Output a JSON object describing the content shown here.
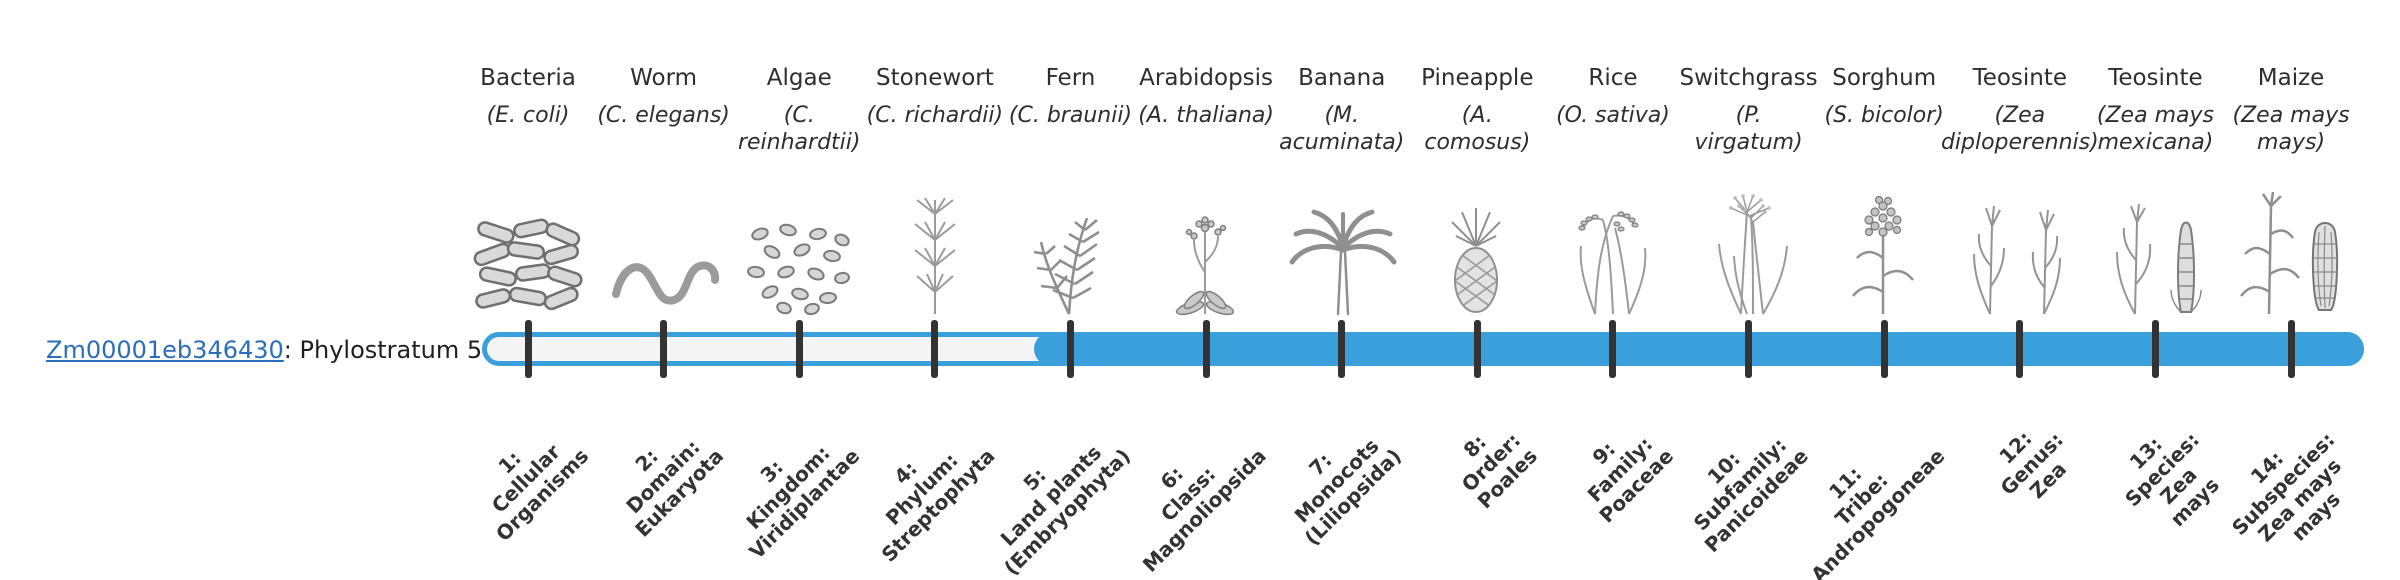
{
  "gene": {
    "id": "Zm00001eb346430",
    "suffix": ": Phylostratum 5",
    "phylostratum": 5
  },
  "colors": {
    "accent": "#3AA0DC",
    "bar_empty": "#F4F4F4",
    "tick": "#333333",
    "link": "#2A6EBB",
    "text": "#2E2E2E"
  },
  "bar": {
    "total_strata": 14,
    "filled_from_stratum": 5,
    "filled_to_stratum": 14
  },
  "organisms": [
    {
      "common": "Bacteria",
      "sci": "(E. coli)",
      "icon": "bacteria-icon"
    },
    {
      "common": "Worm",
      "sci": "(C. elegans)",
      "icon": "worm-icon"
    },
    {
      "common": "Algae",
      "sci": "(C.\nreinhardtii)",
      "icon": "algae-icon"
    },
    {
      "common": "Stonewort",
      "sci": "(C. richardii)",
      "icon": "stonewort-icon"
    },
    {
      "common": "Fern",
      "sci": "(C. braunii)",
      "icon": "fern-icon"
    },
    {
      "common": "Arabidopsis",
      "sci": "(A. thaliana)",
      "icon": "arabidopsis-icon"
    },
    {
      "common": "Banana",
      "sci": "(M.\nacuminata)",
      "icon": "banana-icon"
    },
    {
      "common": "Pineapple",
      "sci": "(A.\ncomosus)",
      "icon": "pineapple-icon"
    },
    {
      "common": "Rice",
      "sci": "(O. sativa)",
      "icon": "rice-icon"
    },
    {
      "common": "Switchgrass",
      "sci": "(P.\nvirgatum)",
      "icon": "switchgrass-icon"
    },
    {
      "common": "Sorghum",
      "sci": "(S. bicolor)",
      "icon": "sorghum-icon"
    },
    {
      "common": "Teosinte",
      "sci": "(Zea\ndiploperennis)",
      "icon": "teosinte-diploperennis-icon"
    },
    {
      "common": "Teosinte",
      "sci": "(Zea mays\nmexicana)",
      "icon": "teosinte-mexicana-icon"
    },
    {
      "common": "Maize",
      "sci": "(Zea mays\nmays)",
      "icon": "maize-icon"
    }
  ],
  "strata": [
    {
      "label": "1:\nCellular\nOrganisms"
    },
    {
      "label": "2:\nDomain:\nEukaryota"
    },
    {
      "label": "3:\nKingdom:\nViridiplantae"
    },
    {
      "label": "4:\nPhylum:\nStreptophyta"
    },
    {
      "label": "5:\nLand plants\n(Embryophyta)"
    },
    {
      "label": "6:\nClass:\nMagnoliopsida"
    },
    {
      "label": "7:\nMonocots\n(Liliopsida)"
    },
    {
      "label": "8:\nOrder:\nPoales"
    },
    {
      "label": "9:\nFamily:\nPoaceae"
    },
    {
      "label": "10:\nSubfamily:\nPanicoideae"
    },
    {
      "label": "11:\nTribe:\nAndropogoneae"
    },
    {
      "label": "12:\nGenus:\nZea"
    },
    {
      "label": "13:\nSpecies:\nZea\nmays"
    },
    {
      "label": "14:\nSubspecies:\nZea mays\nmays"
    }
  ]
}
